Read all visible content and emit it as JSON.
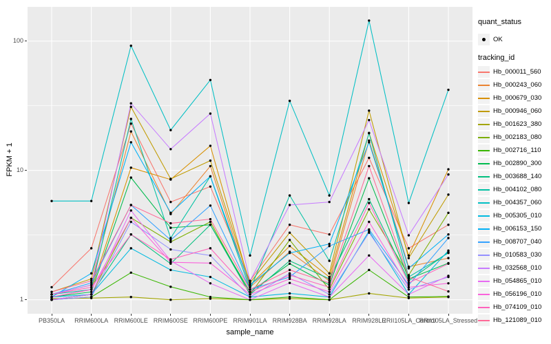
{
  "figure": {
    "y_axis": {
      "title": "FPKM + 1",
      "tick_labels": [
        "1",
        "10",
        "100"
      ],
      "tick_values": [
        1,
        10,
        100
      ]
    },
    "x_axis": {
      "title": "sample_name"
    },
    "legend": {
      "quant_status": {
        "title": "quant_status",
        "items": [
          {
            "label": "OK"
          }
        ]
      },
      "tracking_id": {
        "title": "tracking_id"
      }
    },
    "colors": {
      "panel_bg": "#EBEBEB",
      "grid": "#FFFFFF",
      "legend_key_bg": "#F2F2F2",
      "axis_text": "#4D4D4D",
      "tick_mark": "#333333",
      "point": "#000000"
    }
  },
  "chart_data": {
    "type": "line",
    "title": "",
    "xlabel": "sample_name",
    "ylabel": "FPKM + 1",
    "y_scale": "log10",
    "ylim": [
      1,
      150
    ],
    "grid": true,
    "legend_position": "right",
    "point_marker": "black dot (quant_status OK)",
    "categories": [
      "PB350LA",
      "RRIM600LA",
      "RRIM600LE",
      "RRIM600SE",
      "RRIM600PE",
      "RRIM901LA",
      "RRIM928BA",
      "RRIM928LA",
      "RRIM928LE",
      "RRII105LA_Control",
      "RRII105LA_Stressed"
    ],
    "series": [
      {
        "name": "Hb_000011_560",
        "color": "#F8766D",
        "values": [
          1.25,
          2.5,
          23,
          5.7,
          7.5,
          1.4,
          3.8,
          3.2,
          12.5,
          2.5,
          3.8
        ]
      },
      {
        "name": "Hb_000243_060",
        "color": "#EA8331",
        "values": [
          1.1,
          1.3,
          20,
          4.6,
          10.8,
          1.25,
          2.35,
          1.4,
          17,
          1.8,
          2.1
        ]
      },
      {
        "name": "Hb_000679_030",
        "color": "#D89000",
        "values": [
          1.05,
          1.2,
          10.5,
          8.5,
          15.5,
          1.3,
          2.6,
          1.5,
          19.5,
          2.2,
          10.2
        ]
      },
      {
        "name": "Hb_000946_060",
        "color": "#C09B00",
        "values": [
          1.15,
          1.45,
          31,
          8.6,
          11.9,
          1.35,
          3.3,
          1.6,
          29,
          2.1,
          6.5
        ]
      },
      {
        "name": "Hb_001623_380",
        "color": "#A3A500",
        "values": [
          1.02,
          1.03,
          1.05,
          1.0,
          1.02,
          1.0,
          1.02,
          1.0,
          1.12,
          1.03,
          1.05
        ]
      },
      {
        "name": "Hb_002183_080",
        "color": "#7CAE00",
        "values": [
          1.0,
          1.1,
          4.3,
          2.8,
          4.0,
          1.1,
          2.9,
          1.2,
          5.0,
          1.55,
          4.7
        ]
      },
      {
        "name": "Hb_002716_110",
        "color": "#39B600",
        "values": [
          1.0,
          1.05,
          1.62,
          1.26,
          1.05,
          1.0,
          1.05,
          1.0,
          1.7,
          1.05,
          1.06
        ]
      },
      {
        "name": "Hb_002890_300",
        "color": "#00BB4E",
        "values": [
          1.05,
          1.15,
          8.8,
          3.6,
          3.8,
          1.15,
          1.9,
          1.3,
          8.7,
          1.45,
          1.92
        ]
      },
      {
        "name": "Hb_003688_140",
        "color": "#00BF7D",
        "values": [
          1.0,
          1.1,
          3.2,
          1.9,
          3.8,
          1.1,
          2.0,
          1.45,
          6.0,
          1.4,
          2.33
        ]
      },
      {
        "name": "Hb_004102_080",
        "color": "#00C1A3",
        "values": [
          1.1,
          1.2,
          25,
          3.0,
          9.0,
          1.2,
          6.4,
          2.0,
          19.4,
          1.5,
          2.3
        ]
      },
      {
        "name": "Hb_004357_060",
        "color": "#00BFC4",
        "values": [
          5.8,
          5.8,
          92,
          20.5,
          50,
          2.2,
          34.5,
          6.4,
          144,
          5.6,
          42
        ]
      },
      {
        "name": "Hb_005305_010",
        "color": "#00BAE0",
        "values": [
          1.05,
          1.1,
          2.5,
          1.7,
          1.5,
          1.05,
          1.12,
          1.05,
          3.4,
          1.1,
          2.4
        ]
      },
      {
        "name": "Hb_006153_150",
        "color": "#00B0F6",
        "values": [
          1.05,
          1.6,
          16.5,
          4.7,
          9.0,
          1.3,
          2.3,
          2.7,
          16.5,
          1.75,
          3.2
        ]
      },
      {
        "name": "Hb_008707_040",
        "color": "#35A2FF",
        "values": [
          1.1,
          1.35,
          5.4,
          2.9,
          5.35,
          1.2,
          1.5,
          2.6,
          3.5,
          1.3,
          3.0
        ]
      },
      {
        "name": "Hb_010583_030",
        "color": "#9590FF",
        "values": [
          1.0,
          1.05,
          4.0,
          2.45,
          2.2,
          1.05,
          1.6,
          1.1,
          3.3,
          1.2,
          1.5
        ]
      },
      {
        "name": "Hb_032568_010",
        "color": "#C77CFF",
        "values": [
          1.1,
          1.3,
          33,
          14.6,
          27.5,
          1.4,
          5.4,
          5.7,
          24.5,
          3.15,
          9.3
        ]
      },
      {
        "name": "Hb_054865_010",
        "color": "#E76BF3",
        "values": [
          1.0,
          1.1,
          4.9,
          2.0,
          1.34,
          1.0,
          1.35,
          1.05,
          2.2,
          1.1,
          1.53
        ]
      },
      {
        "name": "Hb_056196_010",
        "color": "#FA62DB",
        "values": [
          1.05,
          1.2,
          4.3,
          1.95,
          1.92,
          1.1,
          1.45,
          1.15,
          4.0,
          1.25,
          1.34
        ]
      },
      {
        "name": "Hb_074109_010",
        "color": "#FF62BC",
        "values": [
          1.1,
          1.25,
          3.2,
          2.05,
          2.5,
          1.15,
          1.55,
          1.25,
          5.6,
          1.35,
          1.9
        ]
      },
      {
        "name": "Hb_121089_010",
        "color": "#FF6A98",
        "values": [
          1.15,
          1.4,
          5.4,
          3.9,
          4.2,
          1.2,
          1.7,
          1.35,
          10.8,
          1.5,
          1.16
        ]
      }
    ]
  }
}
